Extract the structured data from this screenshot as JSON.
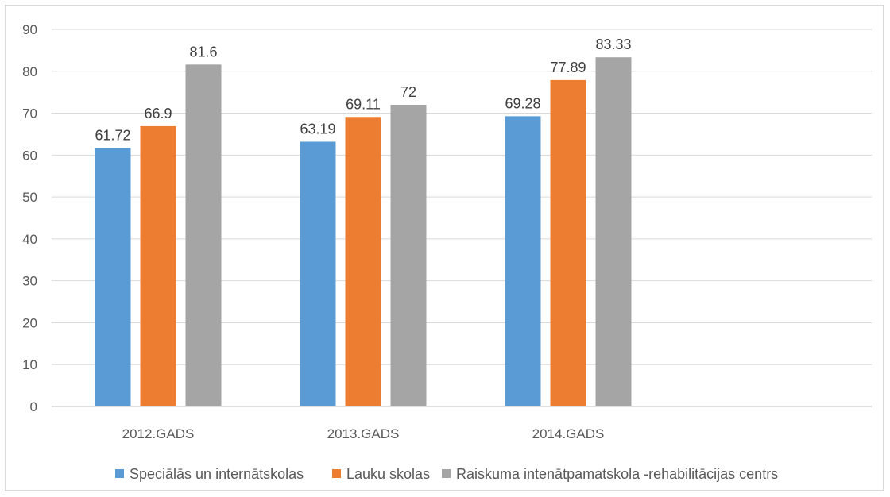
{
  "chart_data": {
    "type": "bar",
    "categories": [
      "2012.GADS",
      "2013.GADS",
      "2014.GADS"
    ],
    "series": [
      {
        "name": "Speciālās un internātskolas",
        "values": [
          61.72,
          63.19,
          69.28
        ],
        "color": "#5b9bd5"
      },
      {
        "name": "Lauku skolas",
        "values": [
          66.9,
          69.11,
          77.89
        ],
        "color": "#ed7d31"
      },
      {
        "name": "Raiskuma intenātpamatskola -rehabilitācijas centrs",
        "values": [
          81.6,
          72,
          83.33
        ],
        "color": "#a5a5a5"
      }
    ],
    "data_labels": [
      [
        "61.72",
        "63.19",
        "69.28"
      ],
      [
        "66.9",
        "69.11",
        "77.89"
      ],
      [
        "81.6",
        "72",
        "83.33"
      ]
    ],
    "yticks": [
      "0",
      "10",
      "20",
      "30",
      "40",
      "50",
      "60",
      "70",
      "80",
      "90"
    ],
    "ylim": [
      0,
      90
    ],
    "grid": true,
    "legend": "bottom",
    "gridline_color": "#d9d9d9",
    "axis_color": "#bfbfbf"
  }
}
